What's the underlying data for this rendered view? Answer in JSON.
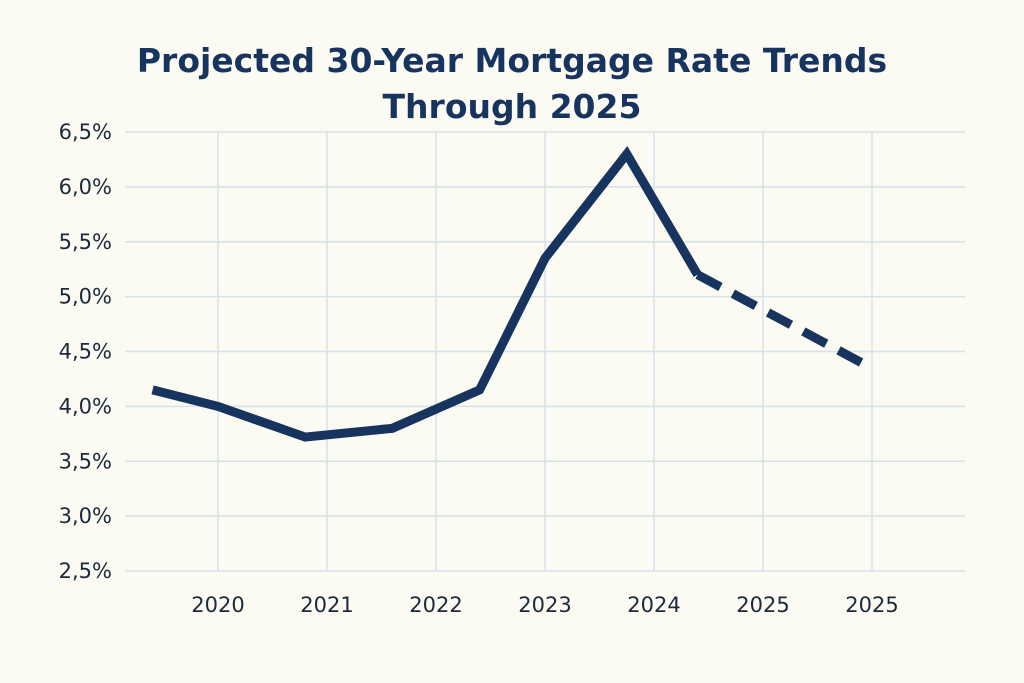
{
  "chart_data": {
    "type": "line",
    "title": "Projected 30-Year Mortgage Rate Trends Through 2025",
    "xlabel": "",
    "ylabel": "",
    "x_tick_labels": [
      "2020",
      "2021",
      "2022",
      "2023",
      "2024",
      "2025",
      "2025"
    ],
    "y_tick_labels": [
      "6,5%",
      "6,0%",
      "5,5%",
      "5,0%",
      "4,5%",
      "4,0%",
      "3,5%",
      "3,0%",
      "2,5%"
    ],
    "ylim": [
      2.5,
      6.5
    ],
    "grid": true,
    "series": [
      {
        "style": "solid",
        "color": "#17345f",
        "points": [
          {
            "x": 2019.4,
            "y": 4.15
          },
          {
            "x": 2020.0,
            "y": 4.0
          },
          {
            "x": 2020.8,
            "y": 3.72
          },
          {
            "x": 2021.6,
            "y": 3.8
          },
          {
            "x": 2022.4,
            "y": 4.15
          },
          {
            "x": 2023.0,
            "y": 5.35
          },
          {
            "x": 2023.75,
            "y": 6.3
          },
          {
            "x": 2024.4,
            "y": 5.2
          }
        ]
      },
      {
        "style": "dashed",
        "color": "#17345f",
        "points": [
          {
            "x": 2024.4,
            "y": 5.2
          },
          {
            "x": 2025.0,
            "y": 4.88
          },
          {
            "x": 2025.9,
            "y": 4.4
          }
        ]
      }
    ]
  },
  "colors": {
    "background": "#fbfaf3",
    "grid": "#d6e2ea",
    "line": "#17345f",
    "title": "#17345f",
    "tick_text": "#1d2a3c"
  }
}
